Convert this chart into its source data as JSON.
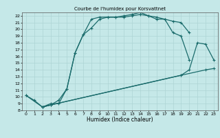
{
  "title": "Courbe de l'humidex pour Korsvattnet",
  "xlabel": "Humidex (Indice chaleur)",
  "xlim": [
    -0.5,
    23.5
  ],
  "ylim": [
    8,
    22.5
  ],
  "bg_color": "#c5e8e8",
  "line_color": "#1a6b6b",
  "grid_color": "#aed4d4",
  "curve1_x": [
    0,
    1,
    2,
    3,
    4,
    5,
    6,
    7,
    8,
    9,
    10,
    11,
    12,
    13,
    14,
    15,
    16,
    17,
    18,
    19,
    20
  ],
  "curve1_y": [
    10.2,
    9.5,
    8.5,
    9.0,
    9.0,
    11.2,
    16.5,
    19.2,
    20.2,
    21.5,
    21.8,
    21.8,
    21.8,
    22.0,
    22.2,
    22.0,
    21.8,
    21.5,
    21.2,
    21.0,
    19.5
  ],
  "curve2_x": [
    0,
    2,
    3,
    4,
    5,
    6,
    7,
    8,
    9,
    10,
    11,
    12,
    13,
    14,
    15,
    16,
    17,
    18,
    19,
    20,
    21,
    22
  ],
  "curve2_y": [
    10.2,
    8.5,
    8.8,
    9.5,
    11.2,
    16.5,
    19.2,
    21.5,
    21.8,
    21.8,
    21.8,
    22.0,
    22.2,
    22.5,
    22.0,
    21.5,
    21.5,
    19.5,
    19.0,
    15.5,
    null,
    null
  ],
  "curve3_x": [
    2,
    3,
    19,
    20,
    21,
    22,
    23
  ],
  "curve3_y": [
    8.5,
    8.8,
    13.2,
    14.0,
    18.0,
    17.8,
    15.5
  ],
  "curve4_x": [
    2,
    3,
    19,
    22,
    23
  ],
  "curve4_y": [
    8.5,
    8.8,
    13.2,
    14.0,
    14.2
  ],
  "yticks": [
    8,
    9,
    10,
    11,
    12,
    13,
    14,
    15,
    16,
    17,
    18,
    19,
    20,
    21,
    22
  ],
  "xticks": [
    0,
    1,
    2,
    3,
    4,
    5,
    6,
    7,
    8,
    9,
    10,
    11,
    12,
    13,
    14,
    15,
    16,
    17,
    18,
    19,
    20,
    21,
    22,
    23
  ]
}
